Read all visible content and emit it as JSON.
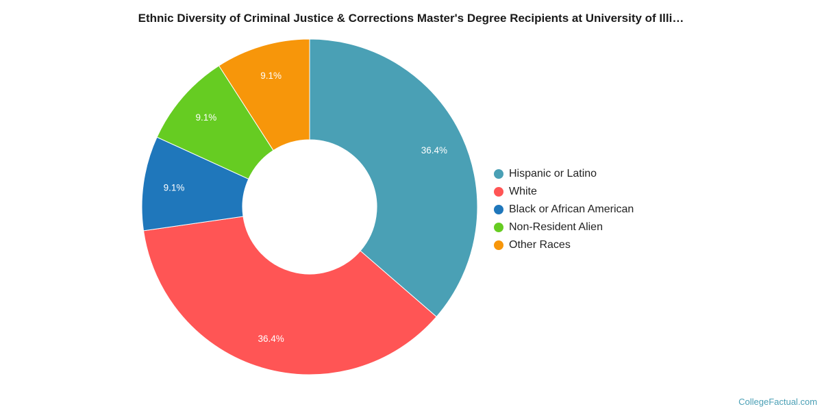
{
  "title": "Ethnic Diversity of Criminal Justice & Corrections Master's Degree Recipients at University of Illi…",
  "source": "CollegeFactual.com",
  "chart_data": {
    "type": "pie",
    "variant": "donut",
    "series": [
      {
        "name": "Hispanic or Latino",
        "value": 36.4,
        "label": "36.4%",
        "color": "#4aa0b5"
      },
      {
        "name": "White",
        "value": 36.4,
        "label": "36.4%",
        "color": "#ff5555"
      },
      {
        "name": "Black or African American",
        "value": 9.1,
        "label": "9.1%",
        "color": "#1f77bb"
      },
      {
        "name": "Non-Resident Alien",
        "value": 9.1,
        "label": "9.1%",
        "color": "#66cc22"
      },
      {
        "name": "Other Races",
        "value": 9.1,
        "label": "9.1%",
        "color": "#f7960a"
      }
    ],
    "legend_position": "right"
  }
}
